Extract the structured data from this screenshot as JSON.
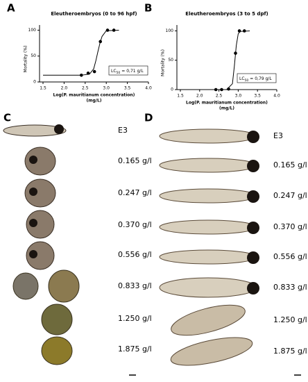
{
  "chart_data": [
    {
      "type": "scatter",
      "panel": "A",
      "title": "Eleutheroembryos (0 to 96 hpf)",
      "ylabel": "Mortality (%)",
      "xlabel": "Log(P. mauritianum concentration)",
      "xlabel2": "(mg/L)",
      "annotation": {
        "prefix": "LC",
        "sub": "50",
        "text": "= 0,71 g/L"
      },
      "x": [
        2.41,
        2.57,
        2.72,
        2.86,
        3.03,
        3.18
      ],
      "values": [
        13,
        17,
        20,
        78,
        100,
        100
      ],
      "color": "#000000",
      "fit": {
        "x": [
          1.5,
          2.4,
          2.6,
          2.7,
          2.75,
          2.8,
          2.85,
          2.9,
          3.0,
          3.3
        ],
        "values": [
          13,
          13,
          15,
          25,
          40,
          58,
          75,
          88,
          99,
          100
        ]
      },
      "xlim": [
        1.5,
        4.0
      ],
      "ylim": [
        0,
        110
      ],
      "xticks": [
        1.5,
        {
          "value": 2,
          "label": "2.0"
        },
        2.5,
        {
          "value": 3,
          "label": "3.0"
        },
        3.5,
        {
          "value": 4,
          "label": "4.0"
        }
      ],
      "yticks": [
        0,
        50,
        100
      ]
    },
    {
      "type": "scatter",
      "panel": "B",
      "title": "Eleutheroembryos (3 to 5 dpf)",
      "ylabel": "Mortality (%)",
      "xlabel": "Log(P. mauritianum concentration)",
      "xlabel2": "(mg/L)",
      "annotation": {
        "prefix": "LC",
        "sub": "50",
        "text": "= 0,79 g/L"
      },
      "x": [
        2.42,
        2.57,
        2.75,
        2.93,
        3.03,
        3.16
      ],
      "values": [
        0,
        0,
        1,
        62,
        100,
        100
      ],
      "color": "#000000",
      "fit": {
        "x": [
          1.5,
          2.7,
          2.85,
          2.9,
          2.95,
          3.0,
          3.05,
          3.3
        ],
        "values": [
          0,
          0,
          10,
          40,
          75,
          95,
          99,
          100
        ]
      },
      "xlim": [
        1.5,
        4.0
      ],
      "ylim": [
        0,
        110
      ],
      "xticks": [
        1.5,
        {
          "value": 2,
          "label": "2.0"
        },
        2.5,
        {
          "value": 3,
          "label": "3.0"
        },
        3.5,
        {
          "value": 4,
          "label": "4.0"
        }
      ],
      "yticks": [
        0,
        50,
        100
      ]
    }
  ],
  "panels": {
    "C": {
      "letter": "C",
      "labels": [
        "E3",
        "0.165 g/l",
        "0.247 g/l",
        "0.370 g/l",
        "0.556 g/l",
        "0.833 g/l",
        "1.250 g/l",
        "1.875 g/l"
      ]
    },
    "D": {
      "letter": "D",
      "labels": [
        "E3",
        "0.165 g/l",
        "0.247 g/l",
        "0.370 g/l",
        "0.556 g/l",
        "0.833 g/l",
        "1.250 g/l",
        "1.875 g/l"
      ]
    }
  }
}
